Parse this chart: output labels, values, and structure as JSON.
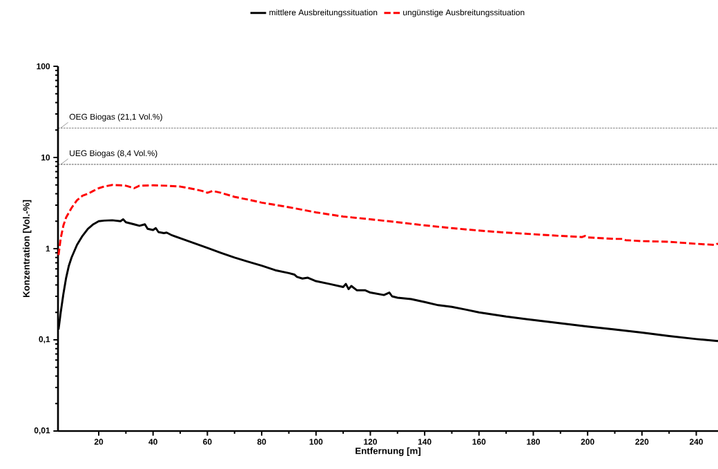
{
  "chart_data": {
    "type": "line",
    "xlabel": "Entfernung [m]",
    "ylabel": "Konzentration [Vol.-%]",
    "log": "y",
    "legend": "top",
    "xlim": [
      5,
      248
    ],
    "xticks": [
      20,
      40,
      60,
      80,
      100,
      120,
      140,
      160,
      180,
      200,
      220,
      240
    ],
    "ylim": [
      0.01,
      100
    ],
    "yticks": [
      {
        "value": 0.01,
        "label": "0,01"
      },
      {
        "value": 0.1,
        "label": "0,1"
      },
      1,
      10,
      100
    ],
    "ref_lines": [
      {
        "axis": "y",
        "value": 21.1,
        "label": "OEG Biogas (21,1 Vol.%)",
        "color": "#000000",
        "line_style": "dashed"
      },
      {
        "axis": "y",
        "value": 8.4,
        "label": "UEG Biogas (8,4 Vol.%)",
        "color": "#000000",
        "line_style": "dashed"
      }
    ],
    "series": [
      {
        "name": "mittlere Ausbreitungssituation",
        "color": "#000000",
        "line_style": "solid",
        "x": [
          5.2,
          6,
          7,
          8,
          9,
          10,
          12,
          14,
          16,
          18,
          20,
          22,
          25,
          28,
          29,
          30,
          33,
          35,
          37,
          38,
          40,
          41,
          42,
          44,
          45,
          47,
          50,
          55,
          60,
          65,
          70,
          75,
          80,
          85,
          90,
          92,
          93,
          95,
          97,
          100,
          105,
          110,
          111,
          112,
          113,
          115,
          118,
          120,
          125,
          127,
          128,
          130,
          135,
          140,
          145,
          150,
          155,
          160,
          170,
          180,
          190,
          200,
          210,
          220,
          230,
          240,
          248
        ],
        "values": [
          0.13,
          0.2,
          0.32,
          0.48,
          0.65,
          0.8,
          1.1,
          1.38,
          1.65,
          1.85,
          2.0,
          2.03,
          2.05,
          2.0,
          2.1,
          1.95,
          1.85,
          1.78,
          1.85,
          1.65,
          1.6,
          1.68,
          1.52,
          1.48,
          1.5,
          1.4,
          1.3,
          1.15,
          1.02,
          0.9,
          0.8,
          0.72,
          0.65,
          0.58,
          0.54,
          0.52,
          0.49,
          0.47,
          0.48,
          0.44,
          0.41,
          0.38,
          0.41,
          0.36,
          0.39,
          0.35,
          0.35,
          0.33,
          0.31,
          0.33,
          0.3,
          0.29,
          0.28,
          0.26,
          0.24,
          0.23,
          0.215,
          0.2,
          0.18,
          0.165,
          0.152,
          0.14,
          0.13,
          0.12,
          0.11,
          0.102,
          0.097
        ]
      },
      {
        "name": "ungünstige Ausbreitungssituation",
        "color": "#ff0000",
        "line_style": "dashed",
        "x": [
          5.2,
          6,
          7,
          8,
          10,
          12,
          14,
          16,
          18,
          20,
          22,
          25,
          28,
          30,
          33,
          35,
          40,
          45,
          50,
          55,
          58,
          60,
          62,
          65,
          70,
          75,
          80,
          90,
          100,
          110,
          120,
          130,
          140,
          150,
          160,
          170,
          180,
          190,
          198,
          199,
          200,
          210,
          213,
          214,
          220,
          230,
          240,
          247,
          248
        ],
        "values": [
          0.85,
          1.3,
          1.8,
          2.2,
          2.8,
          3.4,
          3.8,
          4.0,
          4.3,
          4.6,
          4.8,
          5.0,
          4.95,
          4.9,
          4.6,
          4.9,
          4.95,
          4.9,
          4.8,
          4.5,
          4.3,
          4.1,
          4.3,
          4.1,
          3.7,
          3.45,
          3.2,
          2.85,
          2.5,
          2.25,
          2.1,
          1.95,
          1.8,
          1.68,
          1.58,
          1.5,
          1.44,
          1.38,
          1.34,
          1.38,
          1.33,
          1.28,
          1.28,
          1.24,
          1.21,
          1.19,
          1.13,
          1.1,
          1.14
        ]
      }
    ]
  }
}
